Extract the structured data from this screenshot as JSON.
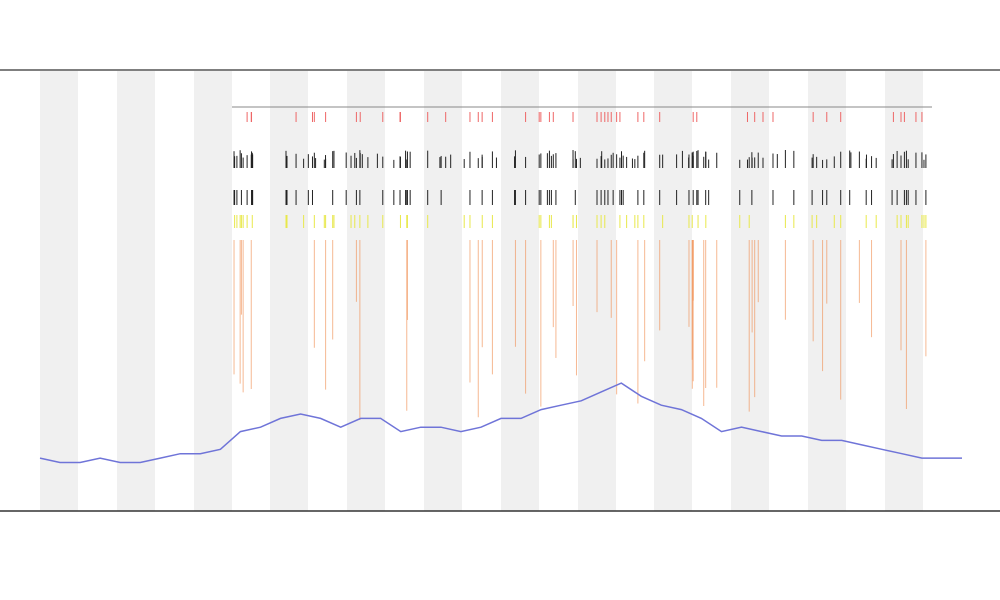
{
  "chart_data": {
    "type": "line",
    "values": [
      12,
      11,
      11,
      12,
      11,
      11,
      12,
      13,
      13,
      14,
      18,
      19,
      21,
      22,
      21,
      19,
      21,
      21,
      18,
      19,
      19,
      18,
      19,
      21,
      21,
      23,
      24,
      25,
      27,
      29,
      26,
      24,
      23,
      21,
      18,
      19,
      18,
      17,
      17,
      16,
      16,
      15,
      14,
      13,
      12,
      12,
      12
    ],
    "color": "#6f74d8",
    "ylim": [
      0,
      100
    ]
  }
}
